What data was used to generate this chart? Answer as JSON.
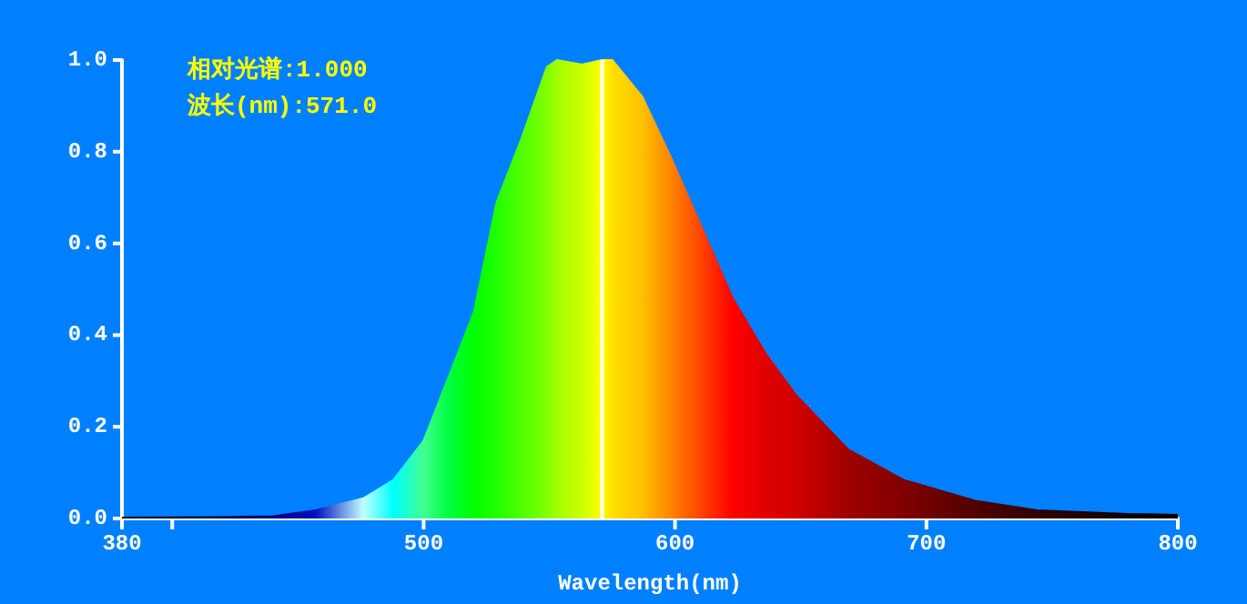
{
  "chart_data": {
    "type": "area",
    "xlabel": "Wavelength(nm)",
    "annotations": [
      "相对光谱:1.000",
      "波长(nm):571.0"
    ],
    "x": [
      380,
      420,
      440,
      457,
      476,
      488,
      500,
      510,
      520,
      529,
      539,
      549,
      553,
      563,
      571,
      575,
      587,
      599,
      611,
      623,
      636,
      648,
      669,
      691,
      720,
      744,
      780,
      800
    ],
    "values": [
      0.002,
      0.003,
      0.005,
      0.018,
      0.044,
      0.084,
      0.17,
      0.31,
      0.45,
      0.69,
      0.83,
      0.985,
      1.0,
      0.99,
      1.0,
      1.0,
      0.92,
      0.78,
      0.63,
      0.48,
      0.36,
      0.27,
      0.15,
      0.084,
      0.038,
      0.018,
      0.01,
      0.008
    ],
    "colors": [
      "#000020",
      "#000050",
      "#000080",
      "#0010c0",
      "#c0ffff",
      "#00ffff",
      "#40ff90",
      "#00ff40",
      "#00ff00",
      "#20ff00",
      "#50ff00",
      "#80ff00",
      "#a0ff00",
      "#ccff00",
      "#ffff00",
      "#ffe000",
      "#ffc000",
      "#ff8000",
      "#ff4000",
      "#ff0000",
      "#e00000",
      "#d00000",
      "#a00000",
      "#800000",
      "#500000",
      "#300000",
      "#100000",
      "#000000"
    ],
    "xlim": [
      380,
      800
    ],
    "xticks": [
      380,
      {
        "value": 400,
        "label": null
      },
      500,
      600,
      700,
      800
    ],
    "ylim": [
      0,
      1
    ],
    "yticks": [
      {
        "value": 0,
        "label": "0.0"
      },
      0.2,
      0.4,
      0.6,
      0.8,
      {
        "value": 1,
        "label": "1.0"
      }
    ],
    "ref_lines": [
      {
        "axis": "x",
        "value": 571,
        "label": null,
        "color": "#ffffff"
      }
    ],
    "line_style": "solid"
  }
}
